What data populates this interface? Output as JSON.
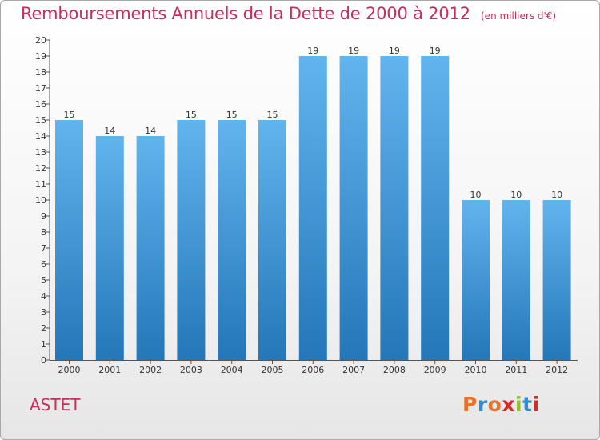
{
  "header": {
    "title": "Remboursements Annuels de la Dette de 2000 à 2012",
    "unit": "(en milliers d'€)"
  },
  "footer": {
    "commune": "ASTET",
    "logo_text": "Proxiti",
    "logo_colors": [
      "#e8732a",
      "#2e8fd0",
      "#e8732a",
      "#d42a2a",
      "#8fbf2a",
      "#2e8fd0",
      "#d42a2a"
    ]
  },
  "colors": {
    "bar_light": "#62b4ee",
    "bar_dark": "#2477b8",
    "title": "#cc2c5c"
  },
  "chart_data": {
    "type": "bar",
    "categories": [
      "2000",
      "2001",
      "2002",
      "2003",
      "2004",
      "2005",
      "2006",
      "2007",
      "2008",
      "2009",
      "2010",
      "2011",
      "2012"
    ],
    "values": [
      15,
      14,
      14,
      15,
      15,
      15,
      19,
      19,
      19,
      19,
      10,
      10,
      10
    ],
    "ylim": [
      0,
      20
    ],
    "yticks": [
      0,
      1,
      2,
      3,
      4,
      5,
      6,
      7,
      8,
      9,
      10,
      11,
      12,
      13,
      14,
      15,
      16,
      17,
      18,
      19,
      20
    ],
    "grid": false
  }
}
